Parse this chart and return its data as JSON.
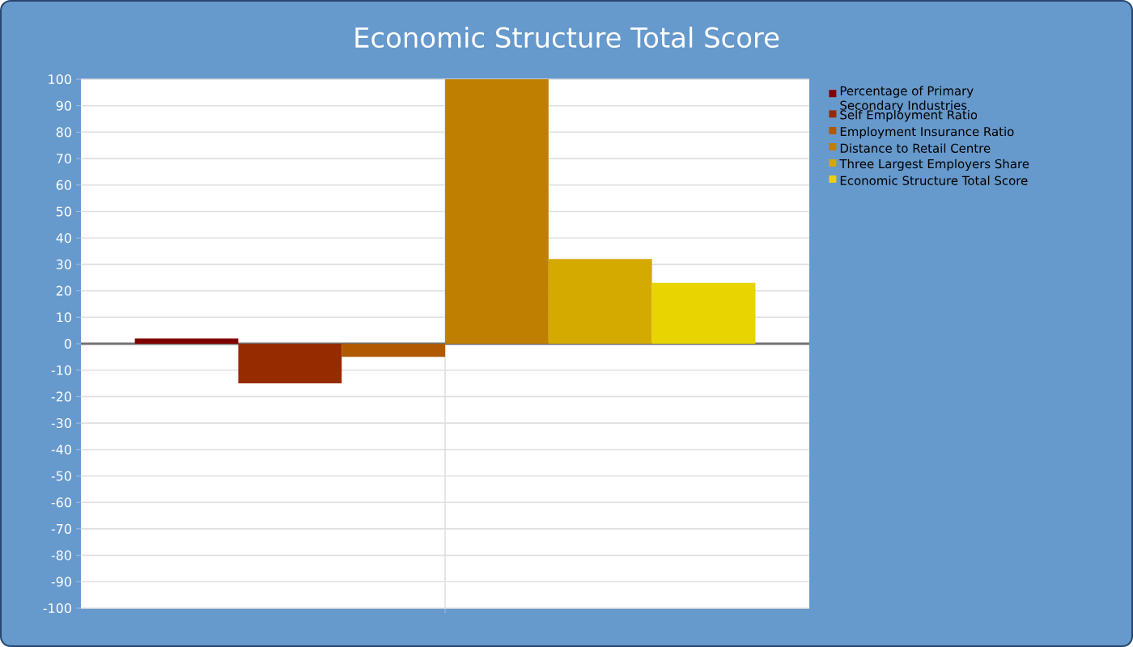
{
  "chart_data": {
    "type": "bar",
    "title": "Economic Structure Total Score",
    "categories": [
      null
    ],
    "series": [
      {
        "name": "Percentage of Primary Secondary Industries",
        "color": "#7f0000",
        "values": [
          2
        ]
      },
      {
        "name": "Self Employment Ratio",
        "color": "#962b00",
        "values": [
          -15
        ]
      },
      {
        "name": "Employment Insurance Ratio",
        "color": "#b05a00",
        "values": [
          -5
        ]
      },
      {
        "name": "Distance to Retail Centre",
        "color": "#bf7f00",
        "values": [
          100
        ]
      },
      {
        "name": "Three Largest Employers Share",
        "color": "#d4a900",
        "values": [
          32
        ]
      },
      {
        "name": "Economic Structure Total Score",
        "color": "#e8d400",
        "values": [
          23
        ]
      }
    ],
    "ylim": [
      -100,
      100
    ],
    "yticks": [
      -100,
      -90,
      -80,
      -70,
      -60,
      -50,
      -40,
      -30,
      -20,
      -10,
      0,
      10,
      20,
      30,
      40,
      50,
      60,
      70,
      80,
      90,
      100
    ],
    "grid": true,
    "legend": "top right"
  }
}
